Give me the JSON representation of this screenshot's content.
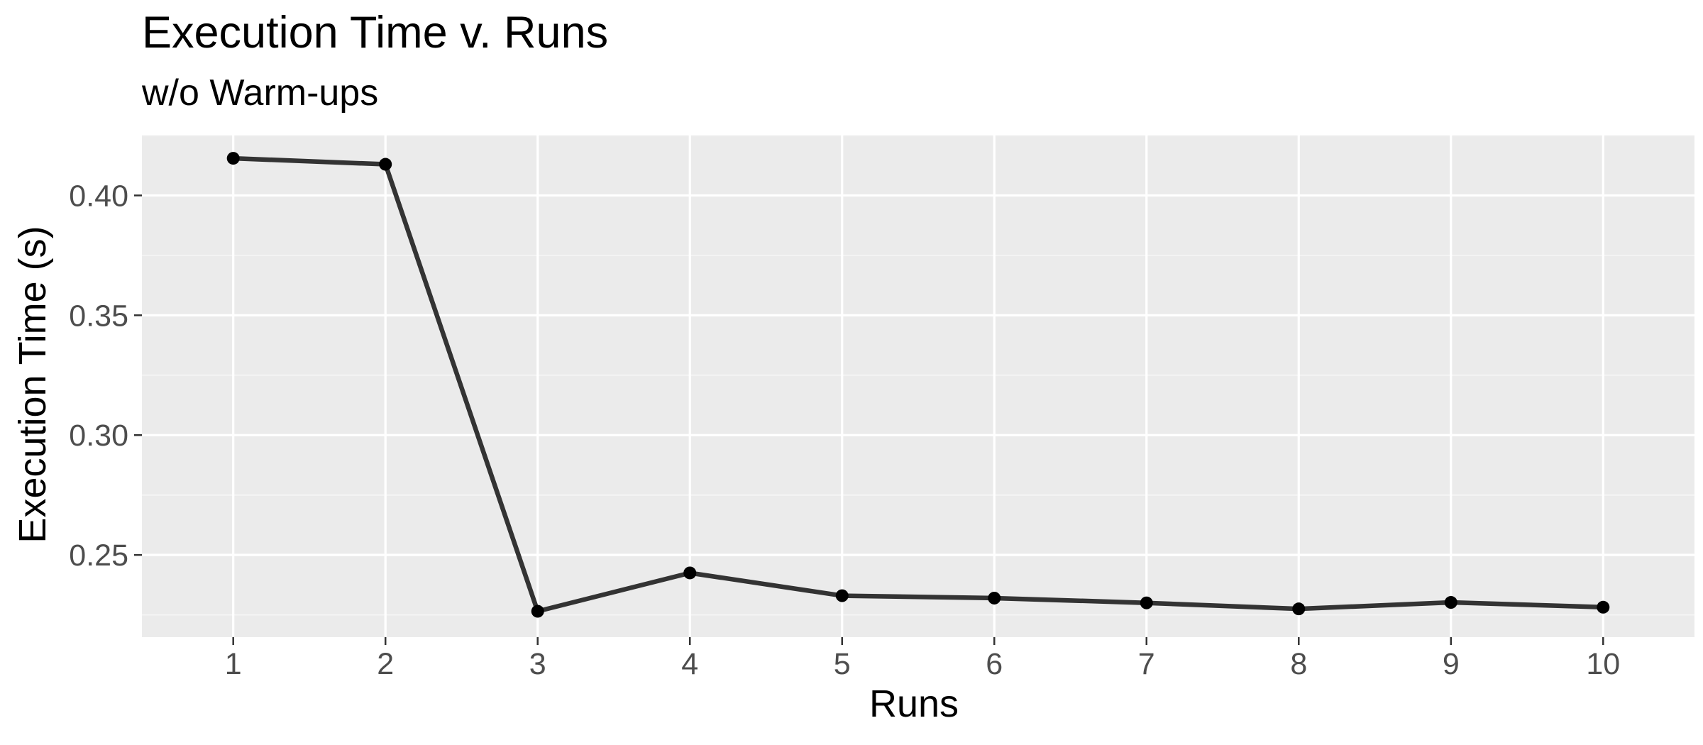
{
  "chart_data": {
    "type": "line",
    "title": "Execution Time v. Runs",
    "subtitle": "w/o Warm-ups",
    "xlabel": "Runs",
    "ylabel": "Execution Time (s)",
    "x": [
      1,
      2,
      3,
      4,
      5,
      6,
      7,
      8,
      9,
      10
    ],
    "x_ticks": [
      1,
      2,
      3,
      4,
      5,
      6,
      7,
      8,
      9,
      10
    ],
    "x_tick_labels": [
      "1",
      "2",
      "3",
      "4",
      "5",
      "6",
      "7",
      "8",
      "9",
      "10"
    ],
    "xlim": [
      0.4,
      10.6
    ],
    "y_ticks": [
      0.25,
      0.3,
      0.35,
      0.4
    ],
    "y_tick_labels": [
      "0.25",
      "0.30",
      "0.35",
      "0.40"
    ],
    "ylim": [
      0.2157,
      0.4253
    ],
    "series": [
      {
        "values": [
          0.4155,
          0.413,
          0.2265,
          0.2425,
          0.233,
          0.232,
          0.23,
          0.2275,
          0.2302,
          0.2282
        ]
      }
    ],
    "grid": true,
    "legend": "none",
    "colors": {
      "panel_background": "#ebebeb",
      "grid_major": "#ffffff",
      "grid_minor": "#f5f5f5",
      "line": "#333333",
      "point": "#000000",
      "tick_text": "#4d4d4d",
      "tick_mark": "#333333"
    }
  }
}
